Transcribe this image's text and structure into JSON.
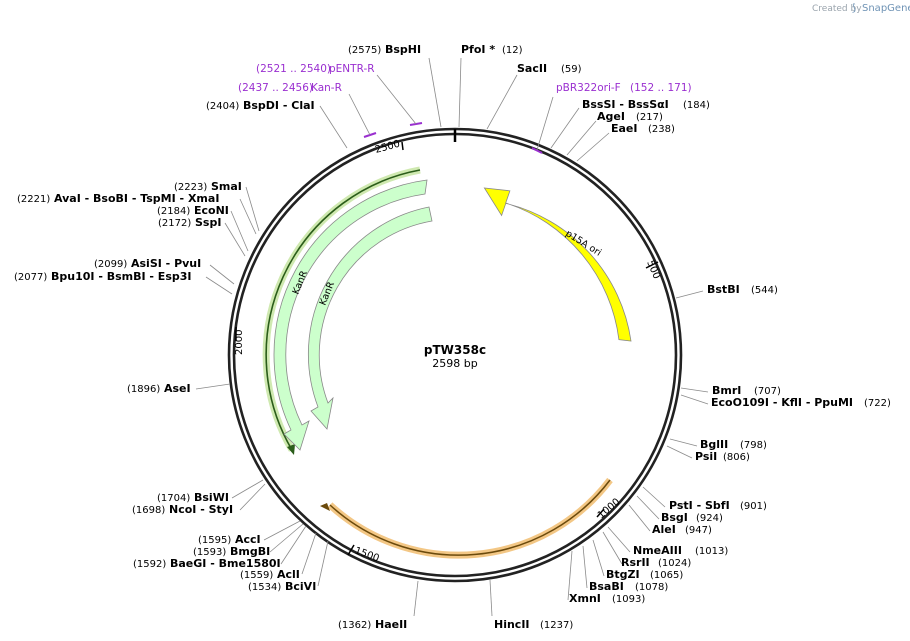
{
  "app": {
    "credit_prefix": "Created by",
    "credit_brand": "SnapGene"
  },
  "plasmid": {
    "name": "pTW358c",
    "size": "2598 bp"
  },
  "ticks": [
    "500",
    "1000",
    "1500",
    "2000",
    "2500"
  ],
  "features": [
    {
      "name": "p15A ori",
      "color": "#ffff00"
    },
    {
      "name": "KanR",
      "color": "#ccffcc"
    },
    {
      "name": "KanR",
      "color": "#ccffcc"
    }
  ],
  "primers": [
    {
      "name": "pBR322ori-F",
      "range": "(152 .. 171)"
    },
    {
      "name": "pENTR-R",
      "range": "(2521 .. 2540)"
    },
    {
      "name": "Kan-R",
      "range": "(2437 .. 2456)"
    }
  ],
  "sites": [
    {
      "pos": "(2575)",
      "name": "BspHI"
    },
    {
      "name": "PfoI *",
      "pos": "(12)"
    },
    {
      "name": "SacII",
      "pos": "(59)"
    },
    {
      "name": "BssSI   - BssSαI",
      "pos": "(184)"
    },
    {
      "name": "AgeI",
      "pos": "(217)"
    },
    {
      "name": "EaeI",
      "pos": "(238)"
    },
    {
      "name": "BstBI",
      "pos": "(544)"
    },
    {
      "name": "BmrI",
      "pos": "(707)"
    },
    {
      "name": "EcoO109I   - KflI   - PpuMI",
      "pos": "(722)"
    },
    {
      "name": "BglII",
      "pos": "(798)"
    },
    {
      "name": "PsiI",
      "pos": "(806)"
    },
    {
      "name": "PstI   - SbfI",
      "pos": "(901)"
    },
    {
      "name": "BsgI",
      "pos": "(924)"
    },
    {
      "name": "AleI",
      "pos": "(947)"
    },
    {
      "name": "NmeAIII",
      "pos": "(1013)"
    },
    {
      "name": "RsrII",
      "pos": "(1024)"
    },
    {
      "name": "BtgZI",
      "pos": "(1065)"
    },
    {
      "name": "BsaBI",
      "pos": "(1078)"
    },
    {
      "name": "XmnI",
      "pos": "(1093)"
    },
    {
      "name": "HincII",
      "pos": "(1237)"
    },
    {
      "pos": "(1362)",
      "name": "HaeII"
    },
    {
      "pos": "(1534)",
      "name": "BciVI"
    },
    {
      "pos": "(1559)",
      "name": "AclI"
    },
    {
      "pos": "(1592)",
      "name": "BaeGI   - Bme1580I"
    },
    {
      "pos": "(1593)",
      "name": "BmgBI"
    },
    {
      "pos": "(1595)",
      "name": "AccI"
    },
    {
      "pos": "(1698)",
      "name": "NcoI   - StyI"
    },
    {
      "pos": "(1704)",
      "name": "BsiWI"
    },
    {
      "pos": "(1896)",
      "name": "AseI"
    },
    {
      "pos": "(2077)",
      "name": "Bpu10I   - BsmBI   - Esp3I"
    },
    {
      "pos": "(2099)",
      "name": "AsiSI   - PvuI"
    },
    {
      "pos": "(2172)",
      "name": "SspI"
    },
    {
      "pos": "(2184)",
      "name": "EcoNI"
    },
    {
      "pos": "(2221)",
      "name": "AvaI   - BsoBI   - TspMI   - XmaI"
    },
    {
      "pos": "(2223)",
      "name": "SmaI"
    },
    {
      "pos": "(2404)",
      "name": "BspDI   - ClaI"
    }
  ]
}
